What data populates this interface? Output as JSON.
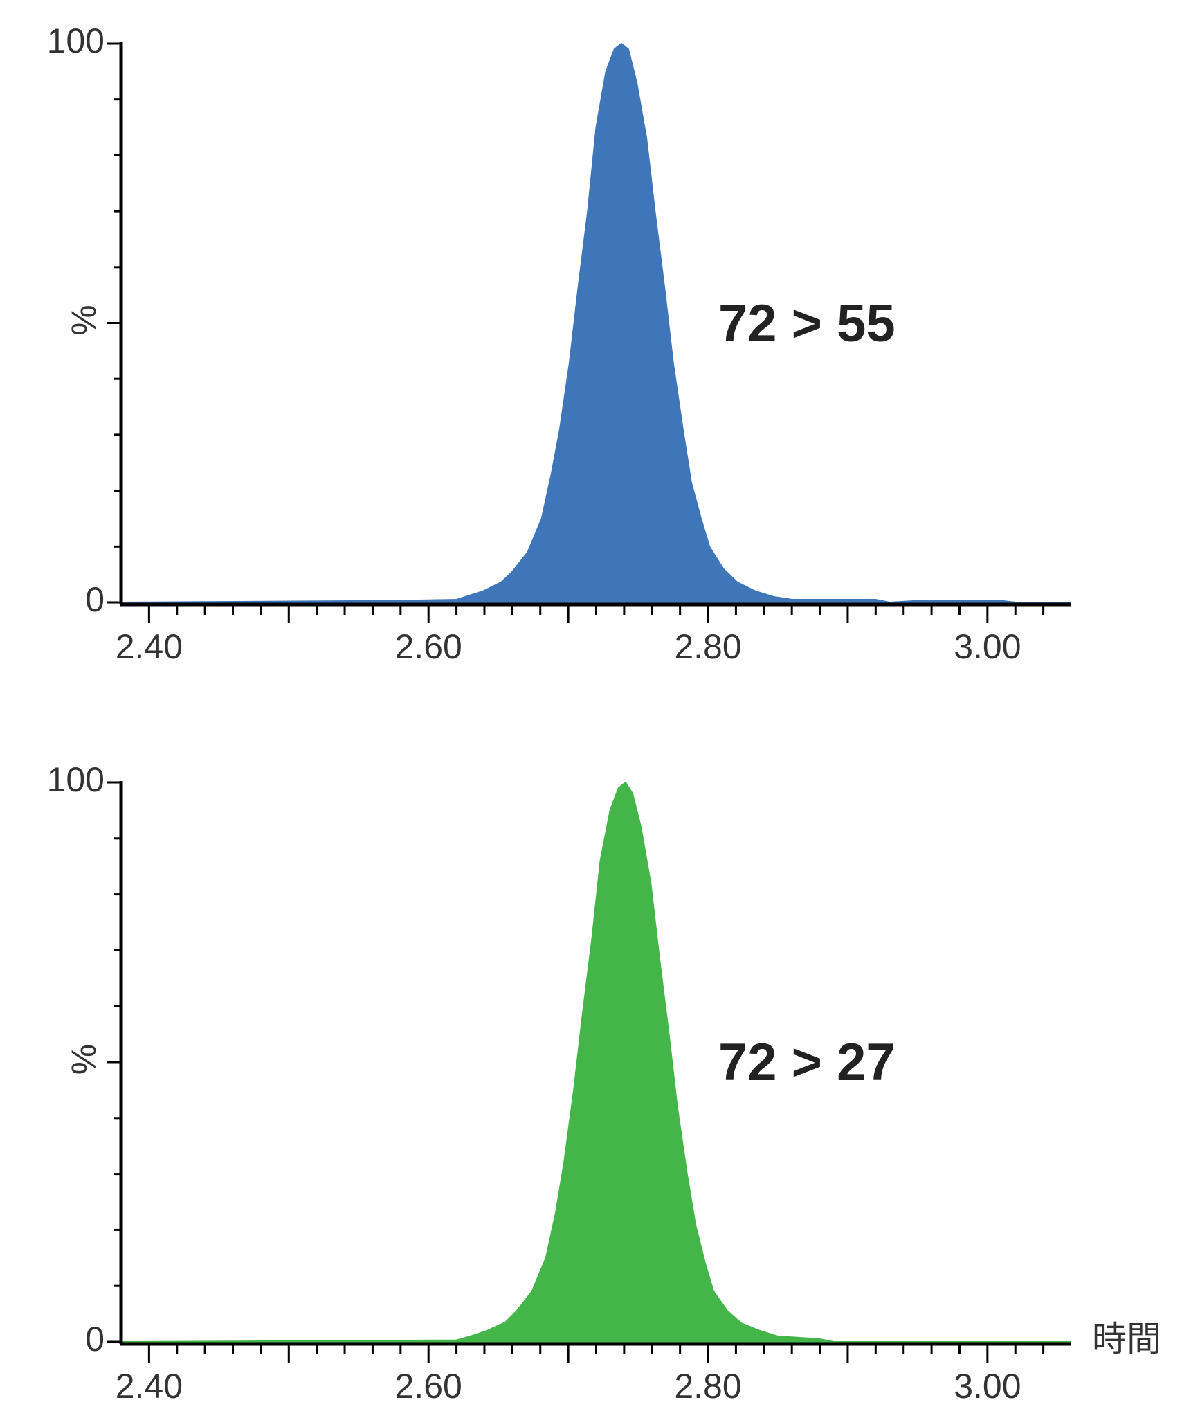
{
  "chart_data": [
    {
      "type": "area",
      "annotation": "72 > 55",
      "ylabel": "%",
      "color": "#3f76b9",
      "x": [
        2.38,
        2.58,
        2.62,
        2.639,
        2.652,
        2.66,
        2.671,
        2.681,
        2.688,
        2.694,
        2.701,
        2.707,
        2.714,
        2.72,
        2.727,
        2.733,
        2.738,
        2.743,
        2.749,
        2.756,
        2.762,
        2.769,
        2.775,
        2.782,
        2.788,
        2.795,
        2.801,
        2.811,
        2.821,
        2.834,
        2.847,
        2.86,
        2.92,
        2.93,
        2.95,
        3.01,
        3.02,
        3.06
      ],
      "values": [
        0,
        0.3,
        0.5,
        2,
        3.6,
        5.5,
        9,
        15,
        23,
        31,
        43,
        56,
        70,
        85,
        95,
        99,
        100,
        99,
        93,
        83,
        70,
        56,
        43,
        31,
        21.5,
        15,
        10,
        6,
        3.6,
        2,
        1,
        0.5,
        0.5,
        0,
        0.3,
        0.3,
        0,
        0
      ],
      "xlim": [
        2.38,
        3.06
      ],
      "xticks": [
        {
          "value": 2.4,
          "label": "2.40"
        },
        {
          "value": 2.6,
          "label": "2.60"
        },
        {
          "value": 2.8,
          "label": "2.80"
        },
        {
          "value": 3.0,
          "label": "3.00"
        }
      ],
      "xminorticks": [
        2.42,
        2.44,
        2.46,
        2.48,
        2.5,
        2.52,
        2.54,
        2.56,
        2.58,
        2.62,
        2.64,
        2.66,
        2.68,
        2.7,
        2.72,
        2.74,
        2.76,
        2.78,
        2.82,
        2.84,
        2.86,
        2.88,
        2.9,
        2.92,
        2.94,
        2.96,
        2.98,
        3.02,
        3.04
      ],
      "ylim": [
        0,
        100
      ],
      "yticks": [
        0,
        100
      ],
      "yminorticks": [
        10,
        20,
        30,
        40,
        50,
        60,
        70,
        80,
        90
      ]
    },
    {
      "type": "area",
      "annotation": "72 > 27",
      "ylabel": "%",
      "xlabel": "時間",
      "color": "#44b549",
      "x": [
        2.38,
        2.62,
        2.63,
        2.642,
        2.655,
        2.663,
        2.674,
        2.684,
        2.691,
        2.697,
        2.704,
        2.71,
        2.717,
        2.723,
        2.73,
        2.736,
        2.741,
        2.746,
        2.752,
        2.759,
        2.765,
        2.772,
        2.778,
        2.785,
        2.791,
        2.798,
        2.804,
        2.814,
        2.824,
        2.837,
        2.85,
        2.88,
        2.89,
        3.06
      ],
      "values": [
        0,
        0.3,
        1,
        2,
        3.5,
        5.5,
        9,
        15,
        23,
        32,
        45,
        58,
        72,
        86,
        95,
        99,
        100,
        98,
        92,
        82,
        69,
        55,
        42,
        30,
        21,
        14,
        9,
        5.5,
        3.3,
        2,
        1,
        0.5,
        0,
        0
      ],
      "xlim": [
        2.38,
        3.06
      ],
      "xticks": [
        {
          "value": 2.4,
          "label": "2.40"
        },
        {
          "value": 2.6,
          "label": "2.60"
        },
        {
          "value": 2.8,
          "label": "2.80"
        },
        {
          "value": 3.0,
          "label": "3.00"
        }
      ],
      "xminorticks": [
        2.42,
        2.44,
        2.46,
        2.48,
        2.5,
        2.52,
        2.54,
        2.56,
        2.58,
        2.62,
        2.64,
        2.66,
        2.68,
        2.7,
        2.72,
        2.74,
        2.76,
        2.78,
        2.82,
        2.84,
        2.86,
        2.88,
        2.9,
        2.92,
        2.94,
        2.96,
        2.98,
        3.02,
        3.04
      ],
      "ylim": [
        0,
        100
      ],
      "yticks": [
        0,
        100
      ],
      "yminorticks": [
        10,
        20,
        30,
        40,
        50,
        60,
        70,
        80,
        90
      ]
    }
  ]
}
